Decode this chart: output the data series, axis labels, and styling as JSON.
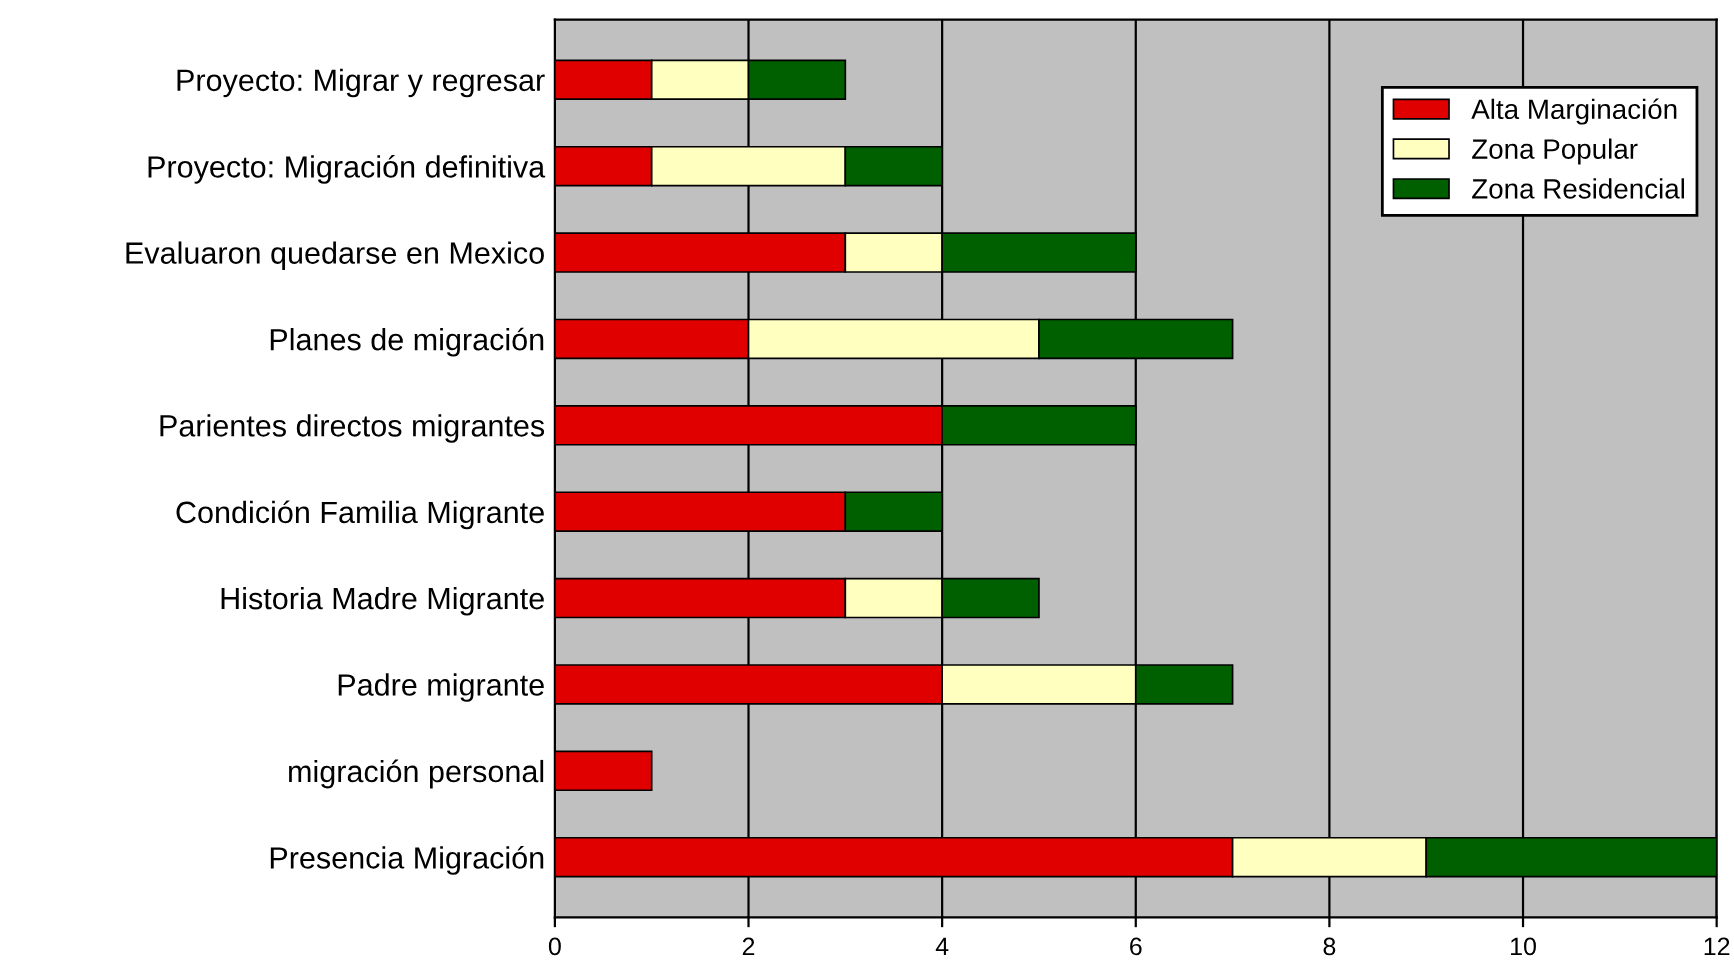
{
  "chart_data": {
    "type": "bar",
    "orientation": "horizontal",
    "stacked": true,
    "categories": [
      "Proyecto: Migrar y regresar",
      "Proyecto: Migración definitiva",
      "Evaluaron quedarse en Mexico",
      "Planes de migración",
      "Parientes directos migrantes",
      "Condición Familia Migrante",
      "Historia Madre Migrante",
      "Padre migrante",
      "migración personal",
      "Presencia Migración"
    ],
    "series": [
      {
        "name": "Alta Marginación",
        "color": "#e00000",
        "values": [
          1,
          1,
          3,
          2,
          4,
          3,
          3,
          4,
          1,
          7
        ]
      },
      {
        "name": "Zona Popular",
        "color": "#ffffc0",
        "values": [
          1,
          2,
          1,
          3,
          0,
          0,
          1,
          2,
          0,
          2
        ]
      },
      {
        "name": "Zona Residencial",
        "color": "#006000",
        "values": [
          1,
          1,
          2,
          2,
          2,
          1,
          1,
          1,
          0,
          3
        ]
      }
    ],
    "xlim": [
      0,
      12
    ],
    "xticks": [
      0,
      2,
      4,
      6,
      8,
      10,
      12
    ],
    "grid": "x",
    "legend": "top right"
  }
}
